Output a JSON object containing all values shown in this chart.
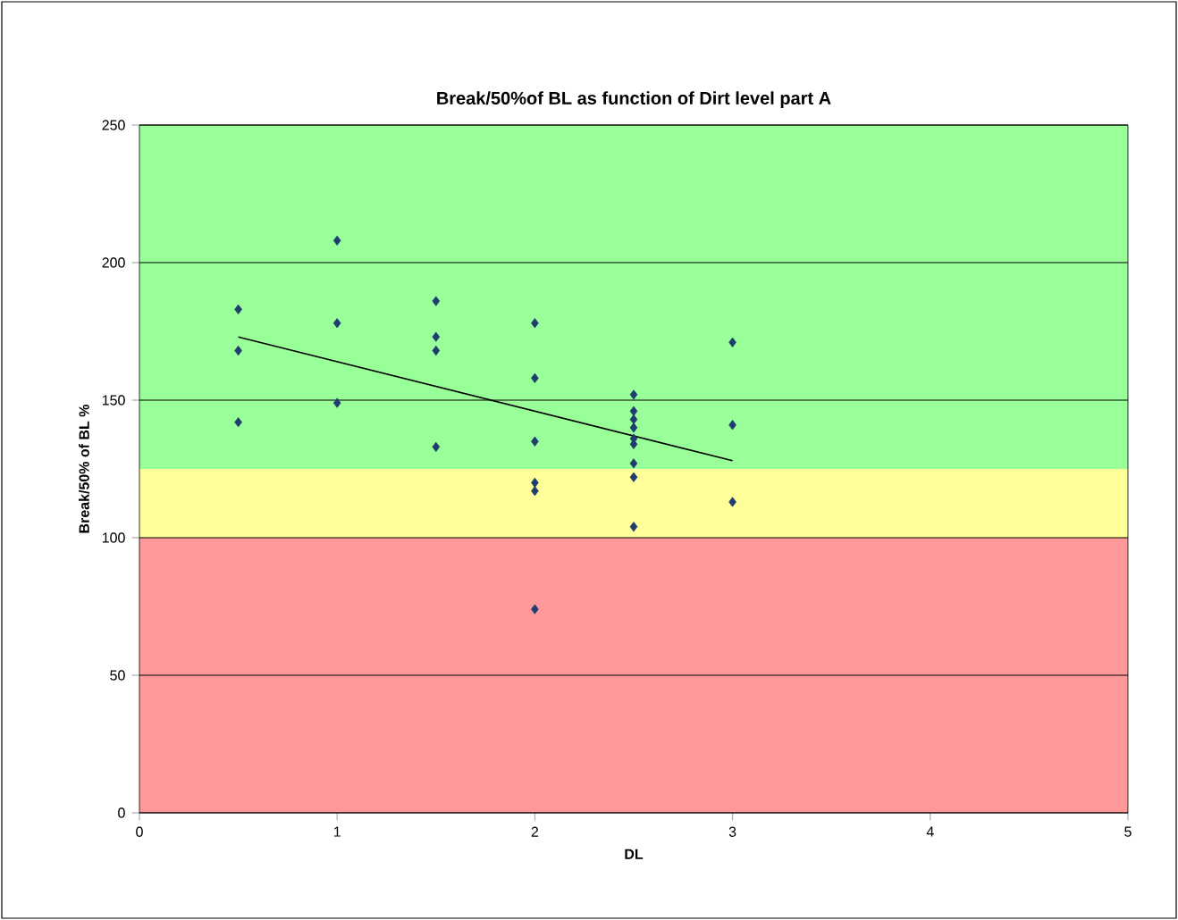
{
  "chart_data": {
    "type": "scatter",
    "title": "Break/50%of BL as function of Dirt level part A",
    "xlabel": "DL",
    "ylabel": "Break/50% of BL  %",
    "xlim": [
      0,
      5
    ],
    "xticks": [
      0,
      1,
      2,
      3,
      4,
      5
    ],
    "ylim": [
      0,
      250
    ],
    "yticks": [
      0,
      50,
      100,
      150,
      200,
      250
    ],
    "grid": "y",
    "series": [
      {
        "marker": "diamond",
        "color": "#1f3d6e",
        "x": [
          0.5,
          0.5,
          0.5,
          1,
          1,
          1,
          1.5,
          1.5,
          1.5,
          1.5,
          2,
          2,
          2,
          2,
          2,
          2,
          2.5,
          2.5,
          2.5,
          2.5,
          2.5,
          2.5,
          2.5,
          2.5,
          2.5,
          3,
          3,
          3
        ],
        "values": [
          183,
          168,
          142,
          208,
          178,
          149,
          186,
          173,
          168,
          133,
          178,
          158,
          135,
          120,
          117,
          74,
          152,
          146,
          143,
          140,
          136,
          134,
          127,
          122,
          104,
          171,
          141,
          113
        ]
      },
      {
        "type": "line",
        "color": "#000000",
        "x": [
          0.5,
          3
        ],
        "values": [
          173,
          128
        ]
      }
    ],
    "bands": [
      {
        "axis": "y",
        "from": 0,
        "to": 100,
        "color": "#ff9999"
      },
      {
        "axis": "y",
        "from": 100,
        "to": 125,
        "color": "#ffff99"
      },
      {
        "axis": "y",
        "from": 125,
        "to": 250,
        "color": "#99ff99"
      }
    ]
  }
}
